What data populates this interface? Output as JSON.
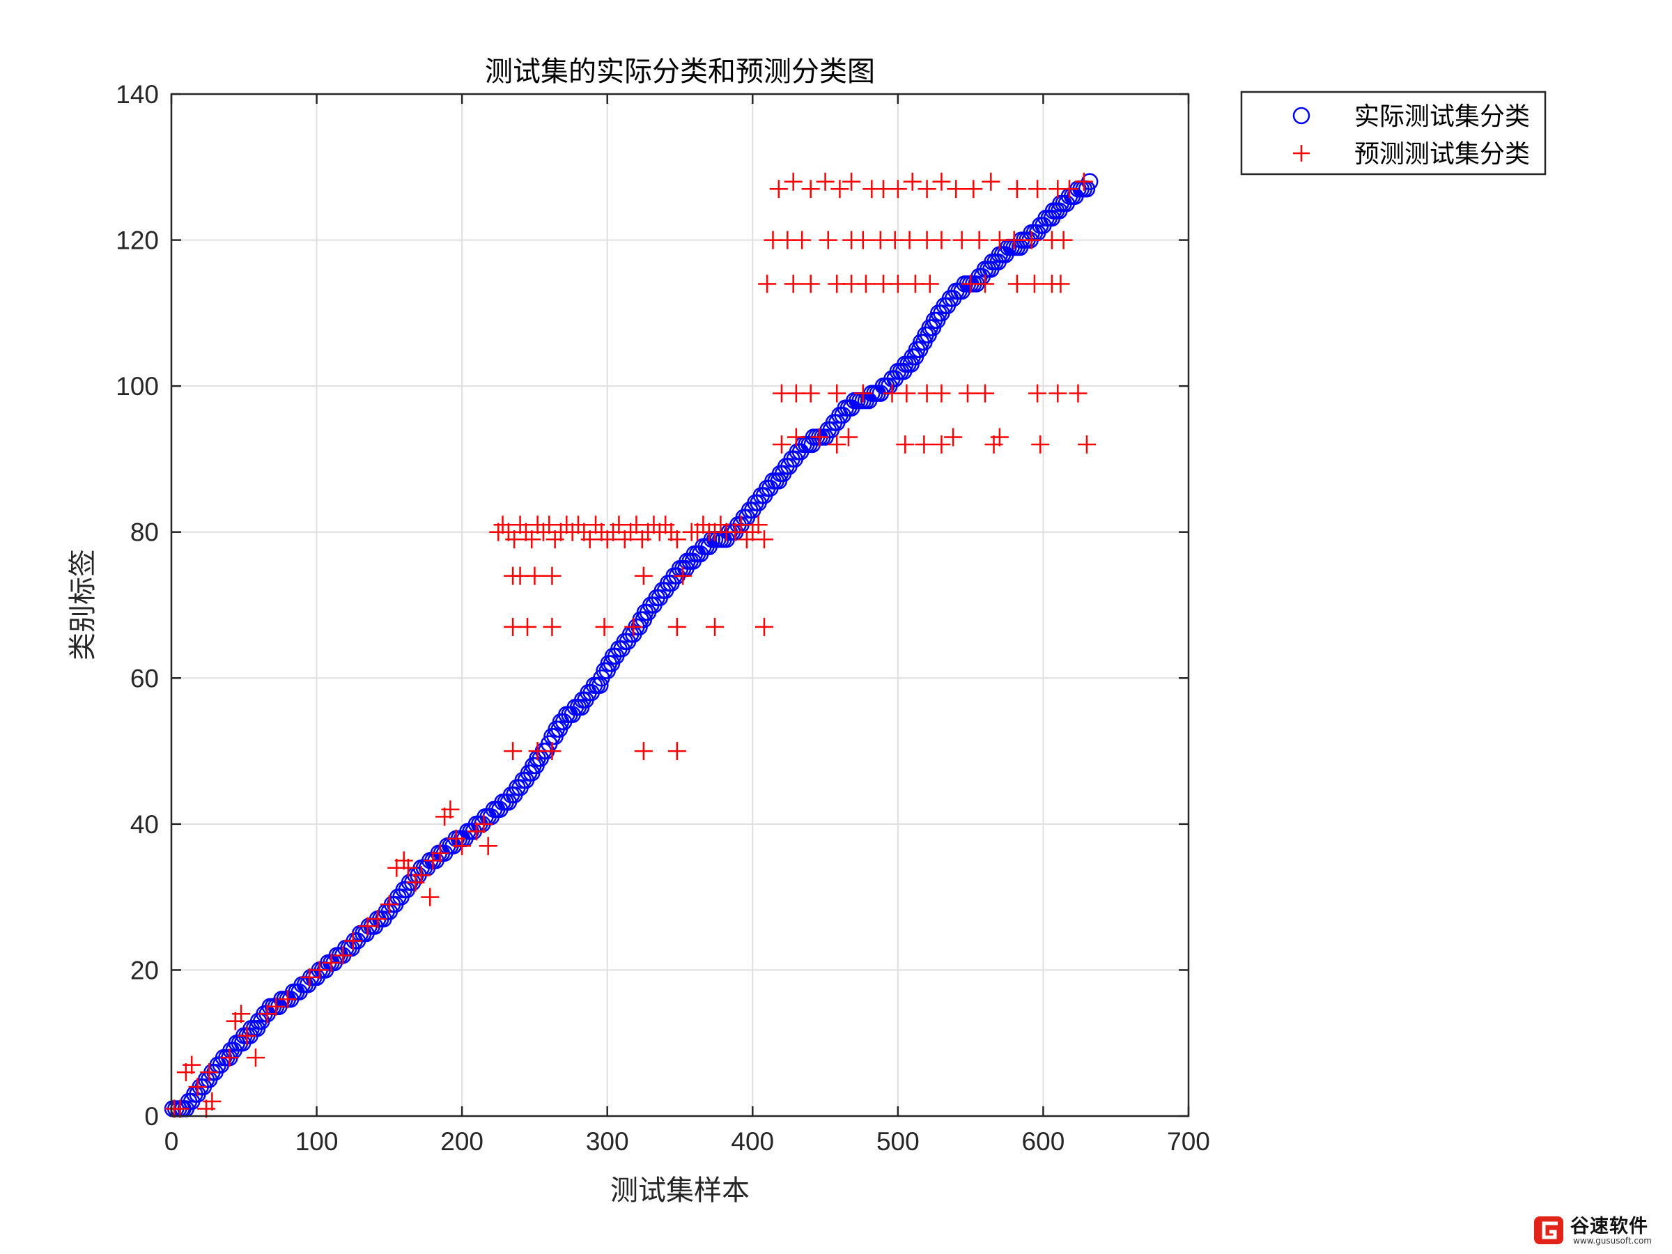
{
  "chart_data": {
    "type": "scatter",
    "title": "测试集的实际分类和预测分类图",
    "xlabel": "测试集样本",
    "ylabel": "类别标签",
    "xlim": [
      0,
      700
    ],
    "ylim": [
      0,
      140
    ],
    "xticks": [
      0,
      100,
      200,
      300,
      400,
      500,
      600,
      700
    ],
    "yticks": [
      0,
      20,
      40,
      60,
      80,
      100,
      120,
      140
    ],
    "grid": true,
    "legend_position": "outside-top-right",
    "series": [
      {
        "name": "实际测试集分类",
        "marker": "circle",
        "color": "#0000ff",
        "points": [
          [
            1,
            1
          ],
          [
            8,
            1
          ],
          [
            12,
            2
          ],
          [
            16,
            3
          ],
          [
            20,
            4
          ],
          [
            24,
            5
          ],
          [
            28,
            6
          ],
          [
            32,
            7
          ],
          [
            36,
            8
          ],
          [
            41,
            9
          ],
          [
            45,
            10
          ],
          [
            50,
            11
          ],
          [
            55,
            12
          ],
          [
            60,
            13
          ],
          [
            64,
            14
          ],
          [
            68,
            15
          ],
          [
            76,
            16
          ],
          [
            84,
            17
          ],
          [
            90,
            18
          ],
          [
            96,
            19
          ],
          [
            102,
            20
          ],
          [
            108,
            21
          ],
          [
            114,
            22
          ],
          [
            120,
            23
          ],
          [
            126,
            24
          ],
          [
            130,
            25
          ],
          [
            136,
            26
          ],
          [
            142,
            27
          ],
          [
            148,
            28
          ],
          [
            152,
            29
          ],
          [
            156,
            30
          ],
          [
            160,
            31
          ],
          [
            164,
            32
          ],
          [
            168,
            33
          ],
          [
            172,
            34
          ],
          [
            178,
            35
          ],
          [
            184,
            36
          ],
          [
            190,
            37
          ],
          [
            196,
            38
          ],
          [
            204,
            39
          ],
          [
            210,
            40
          ],
          [
            216,
            41
          ],
          [
            222,
            42
          ],
          [
            228,
            43
          ],
          [
            234,
            44
          ],
          [
            238,
            45
          ],
          [
            242,
            46
          ],
          [
            246,
            47
          ],
          [
            249,
            48
          ],
          [
            252,
            49
          ],
          [
            256,
            50
          ],
          [
            260,
            51
          ],
          [
            262,
            52
          ],
          [
            265,
            53
          ],
          [
            268,
            54
          ],
          [
            272,
            55
          ],
          [
            278,
            56
          ],
          [
            283,
            57
          ],
          [
            287,
            58
          ],
          [
            291,
            59
          ],
          [
            296,
            60
          ],
          [
            298,
            61
          ],
          [
            301,
            62
          ],
          [
            304,
            63
          ],
          [
            308,
            64
          ],
          [
            312,
            65
          ],
          [
            316,
            66
          ],
          [
            320,
            67
          ],
          [
            323,
            68
          ],
          [
            326,
            69
          ],
          [
            330,
            70
          ],
          [
            334,
            71
          ],
          [
            338,
            72
          ],
          [
            342,
            73
          ],
          [
            346,
            74
          ],
          [
            350,
            75
          ],
          [
            355,
            76
          ],
          [
            360,
            77
          ],
          [
            366,
            78
          ],
          [
            372,
            79
          ],
          [
            384,
            80
          ],
          [
            390,
            81
          ],
          [
            394,
            82
          ],
          [
            398,
            83
          ],
          [
            402,
            84
          ],
          [
            406,
            85
          ],
          [
            410,
            86
          ],
          [
            414,
            87
          ],
          [
            419,
            88
          ],
          [
            423,
            89
          ],
          [
            427,
            90
          ],
          [
            431,
            91
          ],
          [
            435,
            92
          ],
          [
            442,
            93
          ],
          [
            452,
            94
          ],
          [
            456,
            95
          ],
          [
            460,
            96
          ],
          [
            464,
            97
          ],
          [
            470,
            98
          ],
          [
            482,
            99
          ],
          [
            490,
            100
          ],
          [
            496,
            101
          ],
          [
            500,
            102
          ],
          [
            505,
            103
          ],
          [
            510,
            104
          ],
          [
            513,
            105
          ],
          [
            516,
            106
          ],
          [
            519,
            107
          ],
          [
            522,
            108
          ],
          [
            525,
            109
          ],
          [
            528,
            110
          ],
          [
            532,
            111
          ],
          [
            536,
            112
          ],
          [
            540,
            113
          ],
          [
            546,
            114
          ],
          [
            556,
            115
          ],
          [
            560,
            116
          ],
          [
            565,
            117
          ],
          [
            570,
            118
          ],
          [
            576,
            119
          ],
          [
            585,
            120
          ],
          [
            592,
            121
          ],
          [
            598,
            122
          ],
          [
            602,
            123
          ],
          [
            607,
            124
          ],
          [
            612,
            125
          ],
          [
            618,
            126
          ],
          [
            624,
            127
          ],
          [
            632,
            128
          ]
        ]
      },
      {
        "name": "预测测试集分类",
        "marker": "plus",
        "color": "#ff0000",
        "points": [
          [
            2,
            1
          ],
          [
            6,
            1
          ],
          [
            10,
            6
          ],
          [
            14,
            7
          ],
          [
            18,
            4
          ],
          [
            24,
            1
          ],
          [
            28,
            2
          ],
          [
            26,
            6
          ],
          [
            40,
            8
          ],
          [
            44,
            13
          ],
          [
            48,
            14
          ],
          [
            52,
            11
          ],
          [
            58,
            8
          ],
          [
            66,
            14
          ],
          [
            72,
            15
          ],
          [
            80,
            16
          ],
          [
            95,
            19
          ],
          [
            102,
            20
          ],
          [
            110,
            21
          ],
          [
            118,
            22
          ],
          [
            125,
            24
          ],
          [
            135,
            26
          ],
          [
            142,
            27
          ],
          [
            150,
            29
          ],
          [
            155,
            34
          ],
          [
            160,
            35
          ],
          [
            163,
            34
          ],
          [
            168,
            32
          ],
          [
            172,
            33
          ],
          [
            178,
            30
          ],
          [
            180,
            35
          ],
          [
            185,
            36
          ],
          [
            188,
            41
          ],
          [
            192,
            42
          ],
          [
            196,
            38
          ],
          [
            200,
            37
          ],
          [
            210,
            39
          ],
          [
            215,
            40
          ],
          [
            218,
            37
          ],
          [
            225,
            80
          ],
          [
            228,
            81
          ],
          [
            232,
            80
          ],
          [
            236,
            79
          ],
          [
            240,
            81
          ],
          [
            244,
            80
          ],
          [
            248,
            79
          ],
          [
            252,
            81
          ],
          [
            256,
            80
          ],
          [
            260,
            81
          ],
          [
            264,
            79
          ],
          [
            268,
            80
          ],
          [
            272,
            81
          ],
          [
            276,
            80
          ],
          [
            280,
            81
          ],
          [
            284,
            80
          ],
          [
            288,
            79
          ],
          [
            292,
            81
          ],
          [
            296,
            80
          ],
          [
            300,
            79
          ],
          [
            304,
            80
          ],
          [
            308,
            81
          ],
          [
            312,
            79
          ],
          [
            316,
            80
          ],
          [
            320,
            81
          ],
          [
            324,
            79
          ],
          [
            328,
            80
          ],
          [
            332,
            81
          ],
          [
            336,
            80
          ],
          [
            340,
            81
          ],
          [
            344,
            80
          ],
          [
            348,
            79
          ],
          [
            358,
            80
          ],
          [
            362,
            80
          ],
          [
            366,
            81
          ],
          [
            370,
            80
          ],
          [
            374,
            80
          ],
          [
            378,
            81
          ],
          [
            382,
            80
          ],
          [
            388,
            80
          ],
          [
            392,
            81
          ],
          [
            396,
            79
          ],
          [
            400,
            80
          ],
          [
            404,
            81
          ],
          [
            408,
            79
          ],
          [
            235,
            74
          ],
          [
            240,
            74
          ],
          [
            250,
            74
          ],
          [
            262,
            74
          ],
          [
            325,
            74
          ],
          [
            352,
            74
          ],
          [
            235,
            67
          ],
          [
            245,
            67
          ],
          [
            262,
            67
          ],
          [
            298,
            67
          ],
          [
            318,
            67
          ],
          [
            348,
            67
          ],
          [
            374,
            67
          ],
          [
            408,
            67
          ],
          [
            235,
            50
          ],
          [
            252,
            50
          ],
          [
            262,
            50
          ],
          [
            325,
            50
          ],
          [
            348,
            50
          ],
          [
            410,
            114
          ],
          [
            428,
            114
          ],
          [
            440,
            114
          ],
          [
            458,
            114
          ],
          [
            468,
            114
          ],
          [
            478,
            114
          ],
          [
            490,
            114
          ],
          [
            500,
            114
          ],
          [
            512,
            114
          ],
          [
            522,
            114
          ],
          [
            550,
            114
          ],
          [
            560,
            114
          ],
          [
            582,
            114
          ],
          [
            594,
            114
          ],
          [
            606,
            114
          ],
          [
            612,
            114
          ],
          [
            414,
            120
          ],
          [
            424,
            120
          ],
          [
            434,
            120
          ],
          [
            452,
            120
          ],
          [
            468,
            120
          ],
          [
            476,
            120
          ],
          [
            488,
            120
          ],
          [
            498,
            120
          ],
          [
            508,
            120
          ],
          [
            520,
            120
          ],
          [
            530,
            120
          ],
          [
            544,
            120
          ],
          [
            556,
            120
          ],
          [
            570,
            120
          ],
          [
            580,
            120
          ],
          [
            592,
            120
          ],
          [
            606,
            120
          ],
          [
            614,
            120
          ],
          [
            418,
            127
          ],
          [
            428,
            128
          ],
          [
            440,
            127
          ],
          [
            450,
            128
          ],
          [
            460,
            127
          ],
          [
            468,
            128
          ],
          [
            482,
            127
          ],
          [
            490,
            127
          ],
          [
            500,
            127
          ],
          [
            510,
            128
          ],
          [
            520,
            127
          ],
          [
            530,
            128
          ],
          [
            540,
            127
          ],
          [
            552,
            127
          ],
          [
            564,
            128
          ],
          [
            582,
            127
          ],
          [
            596,
            127
          ],
          [
            610,
            127
          ],
          [
            618,
            127
          ],
          [
            628,
            128
          ],
          [
            420,
            99
          ],
          [
            430,
            99
          ],
          [
            440,
            99
          ],
          [
            458,
            99
          ],
          [
            476,
            99
          ],
          [
            496,
            99
          ],
          [
            506,
            99
          ],
          [
            520,
            99
          ],
          [
            530,
            99
          ],
          [
            548,
            99
          ],
          [
            560,
            99
          ],
          [
            596,
            99
          ],
          [
            610,
            99
          ],
          [
            624,
            99
          ],
          [
            420,
            92
          ],
          [
            430,
            93
          ],
          [
            446,
            93
          ],
          [
            458,
            92
          ],
          [
            466,
            93
          ],
          [
            505,
            92
          ],
          [
            518,
            92
          ],
          [
            530,
            92
          ],
          [
            538,
            93
          ],
          [
            566,
            92
          ],
          [
            570,
            93
          ],
          [
            598,
            92
          ],
          [
            630,
            92
          ]
        ]
      }
    ]
  },
  "watermark": {
    "brand": "谷速软件",
    "url": "www.gususoft.com"
  }
}
